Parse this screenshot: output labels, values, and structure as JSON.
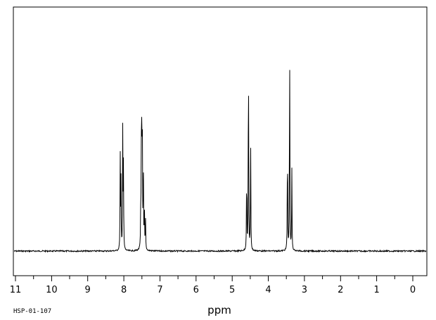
{
  "chart_data": {
    "type": "line",
    "title": "",
    "xlabel": "ppm",
    "ylabel": "",
    "xlim": [
      11,
      0
    ],
    "x_reversed": true,
    "ylim": [
      0,
      1
    ],
    "baseline": 0,
    "grid": false,
    "x_ticks": [
      "11",
      "10",
      "9",
      "8",
      "7",
      "6",
      "5",
      "4",
      "3",
      "2",
      "1",
      "0"
    ],
    "sample_id": "HSP-01-107",
    "peaks": [
      {
        "ppm": 8.1,
        "height": 0.42
      },
      {
        "ppm": 8.08,
        "height": 0.3
      },
      {
        "ppm": 8.03,
        "height": 0.55
      },
      {
        "ppm": 8.01,
        "height": 0.38
      },
      {
        "ppm": 7.53,
        "height": 0.22
      },
      {
        "ppm": 7.51,
        "height": 0.78
      },
      {
        "ppm": 7.49,
        "height": 0.7
      },
      {
        "ppm": 7.46,
        "height": 0.4
      },
      {
        "ppm": 7.43,
        "height": 0.18
      },
      {
        "ppm": 7.4,
        "height": 0.14
      },
      {
        "ppm": 4.6,
        "height": 0.38
      },
      {
        "ppm": 4.55,
        "height": 0.98
      },
      {
        "ppm": 4.49,
        "height": 0.52
      },
      {
        "ppm": 3.47,
        "height": 0.52
      },
      {
        "ppm": 3.41,
        "height": 0.99
      },
      {
        "ppm": 3.35,
        "height": 0.38
      }
    ]
  },
  "colors": {
    "trace": "#000000",
    "frame": "#000000",
    "background": "#ffffff"
  }
}
